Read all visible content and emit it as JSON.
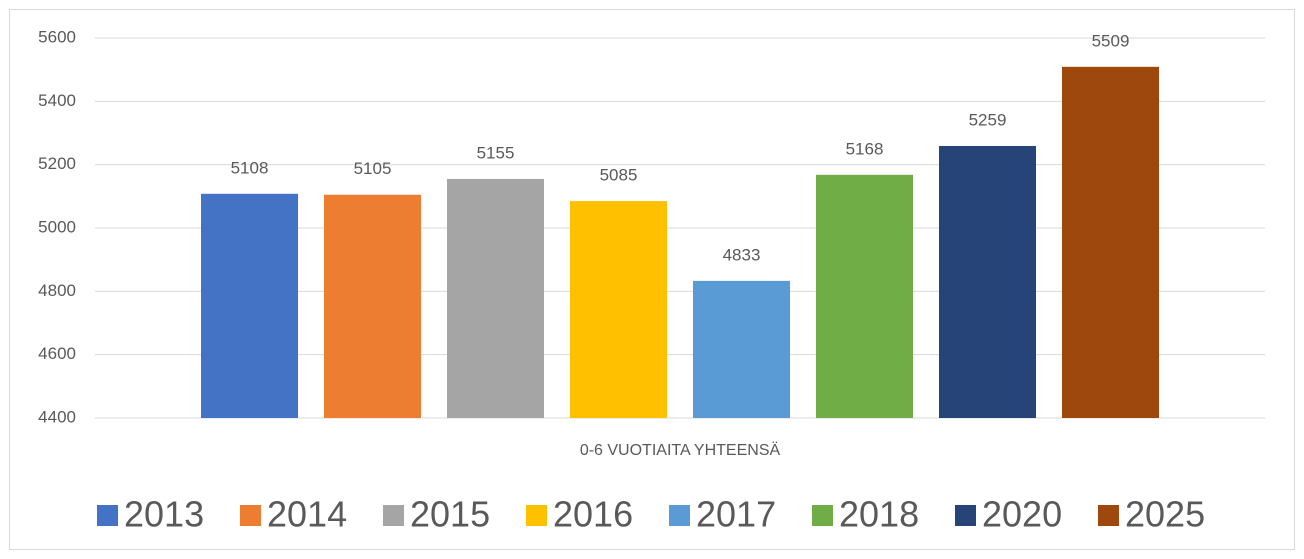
{
  "chart_data": {
    "type": "bar",
    "categories": [
      "0-6 VUOTIAITA YHTEENSÄ"
    ],
    "series": [
      {
        "name": "2013",
        "color": "#4472c4",
        "values": [
          5108
        ]
      },
      {
        "name": "2014",
        "color": "#ed7d31",
        "values": [
          5105
        ]
      },
      {
        "name": "2015",
        "color": "#a5a5a5",
        "values": [
          5155
        ]
      },
      {
        "name": "2016",
        "color": "#ffc000",
        "values": [
          5085
        ]
      },
      {
        "name": "2017",
        "color": "#5b9bd5",
        "values": [
          4833
        ]
      },
      {
        "name": "2018",
        "color": "#70ad47",
        "values": [
          5168
        ]
      },
      {
        "name": "2020",
        "color": "#264478",
        "values": [
          5259
        ]
      },
      {
        "name": "2025",
        "color": "#9e480e",
        "values": [
          5509
        ]
      }
    ],
    "ylim": [
      4400,
      5600
    ],
    "yticks": [
      4400,
      4600,
      4800,
      5000,
      5200,
      5400,
      5600
    ],
    "grid": true,
    "legend": "bottom"
  }
}
